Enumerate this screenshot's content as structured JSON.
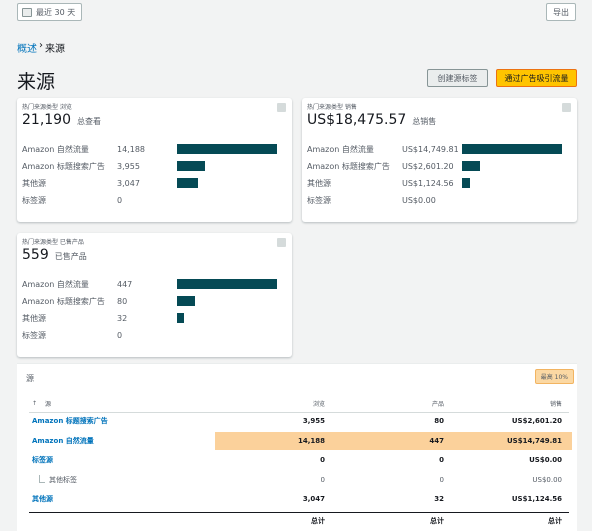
{
  "toolbar": {
    "date_range": "最近 30 天",
    "export_label": "导出"
  },
  "breadcrumb": {
    "overview": "概述",
    "separator": "›",
    "current": "来源"
  },
  "page": {
    "title": "来源",
    "create_tag_label": "创建源标签",
    "ad_traffic_label": "通过广告吸引流量"
  },
  "cards": {
    "views": {
      "title": "热门来源类型 浏览",
      "total": "21,190",
      "unit": "总查看",
      "rows": [
        {
          "label": "Amazon 自然流量",
          "value": "14,188",
          "num": 14188
        },
        {
          "label": "Amazon 标题搜索广告",
          "value": "3,955",
          "num": 3955
        },
        {
          "label": "其他源",
          "value": "3,047",
          "num": 3047
        },
        {
          "label": "标签源",
          "value": "0",
          "num": 0
        }
      ]
    },
    "sales": {
      "title": "热门来源类型 销售",
      "total": "US$18,475.57",
      "unit": "总销售",
      "rows": [
        {
          "label": "Amazon 自然流量",
          "value": "US$14,749.81",
          "num": 14749.81
        },
        {
          "label": "Amazon 标题搜索广告",
          "value": "US$2,601.20",
          "num": 2601.2
        },
        {
          "label": "其他源",
          "value": "US$1,124.56",
          "num": 1124.56
        },
        {
          "label": "标签源",
          "value": "US$0.00",
          "num": 0
        }
      ]
    },
    "products": {
      "title": "热门来源类型 已售产品",
      "total": "559",
      "unit": "已售产品",
      "rows": [
        {
          "label": "Amazon 自然流量",
          "value": "447",
          "num": 447
        },
        {
          "label": "Amazon 标题搜索广告",
          "value": "80",
          "num": 80
        },
        {
          "label": "其他源",
          "value": "32",
          "num": 32
        },
        {
          "label": "标签源",
          "value": "0",
          "num": 0
        }
      ]
    }
  },
  "table": {
    "title": "源",
    "top_tag": "最高 10%",
    "headers": {
      "sort": "↑",
      "source": "源",
      "views": "浏览",
      "products": "产品",
      "sales": "销售"
    },
    "rows": [
      {
        "source": "Amazon 标题搜索广告",
        "views": "3,955",
        "products": "80",
        "sales": "US$2,601.20"
      },
      {
        "source": "Amazon 自然流量",
        "views": "14,188",
        "products": "447",
        "sales": "US$14,749.81"
      },
      {
        "source": "标签源",
        "views": "0",
        "products": "0",
        "sales": "US$0.00"
      },
      {
        "source": "其他标签",
        "views": "0",
        "products": "0",
        "sales": "US$0.00"
      },
      {
        "source": "其他源",
        "views": "3,047",
        "products": "32",
        "sales": "US$1,124.56"
      }
    ],
    "total_label": "总计"
  },
  "colors": {
    "bar": "#054a55",
    "primary_button": "#ffc400",
    "highlight_row": "#fbd19b",
    "link": "#0073bb"
  }
}
